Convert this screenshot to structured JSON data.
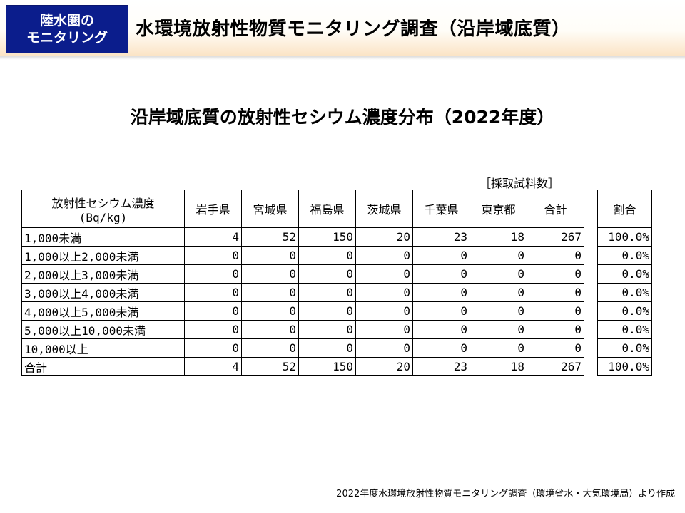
{
  "header": {
    "badge_line1": "陸水圏の",
    "badge_line2": "モニタリング",
    "title": "水環境放射性物質モニタリング調査（沿岸域底質）"
  },
  "subtitle": "沿岸域底質の放射性セシウム濃度分布（2022年度）",
  "table_note": "［採取試料数］",
  "table": {
    "corner_line1": "放射性セシウム濃度",
    "corner_line2": "(Bq/kg)",
    "columns": [
      "岩手県",
      "宮城県",
      "福島県",
      "茨城県",
      "千葉県",
      "東京都",
      "合計"
    ],
    "ratio_header": "割合",
    "rows": [
      {
        "label": "1,000未満",
        "values": [
          "4",
          "52",
          "150",
          "20",
          "23",
          "18",
          "267"
        ],
        "ratio": "100.0%"
      },
      {
        "label": "1,000以上2,000未満",
        "values": [
          "0",
          "0",
          "0",
          "0",
          "0",
          "0",
          "0"
        ],
        "ratio": "0.0%"
      },
      {
        "label": "2,000以上3,000未満",
        "values": [
          "0",
          "0",
          "0",
          "0",
          "0",
          "0",
          "0"
        ],
        "ratio": "0.0%"
      },
      {
        "label": "3,000以上4,000未満",
        "values": [
          "0",
          "0",
          "0",
          "0",
          "0",
          "0",
          "0"
        ],
        "ratio": "0.0%"
      },
      {
        "label": "4,000以上5,000未満",
        "values": [
          "0",
          "0",
          "0",
          "0",
          "0",
          "0",
          "0"
        ],
        "ratio": "0.0%"
      },
      {
        "label": "5,000以上10,000未満",
        "values": [
          "0",
          "0",
          "0",
          "0",
          "0",
          "0",
          "0"
        ],
        "ratio": "0.0%"
      },
      {
        "label": "10,000以上",
        "values": [
          "0",
          "0",
          "0",
          "0",
          "0",
          "0",
          "0"
        ],
        "ratio": "0.0%"
      },
      {
        "label": "合計",
        "values": [
          "4",
          "52",
          "150",
          "20",
          "23",
          "18",
          "267"
        ],
        "ratio": "100.0%"
      }
    ]
  },
  "footer": "2022年度水環境放射性物質モニタリング調査（環境省水・大気環境局）より作成"
}
